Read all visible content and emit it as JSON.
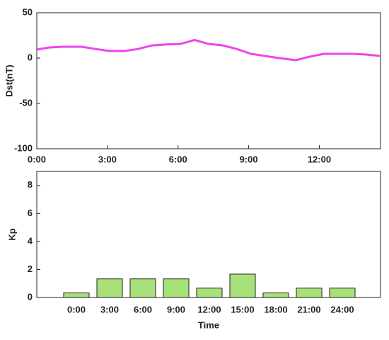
{
  "chart_data": [
    {
      "type": "line",
      "ylabel": "Dst(nT)",
      "x": [
        0,
        0.54,
        1.14,
        1.9,
        2.5,
        3.1,
        3.7,
        4.3,
        4.9,
        5.5,
        6.1,
        6.7,
        7.3,
        7.9,
        8.5,
        9.1,
        9.7,
        10.3,
        11.0,
        11.6,
        12.2,
        12.8,
        13.4,
        14.0,
        14.6
      ],
      "series": [
        {
          "color": "#ee44ee",
          "values": [
            9.4,
            11.7,
            12.5,
            12.5,
            10,
            7.8,
            7.8,
            10,
            14,
            15,
            15.6,
            20,
            15.6,
            14,
            10,
            4.7,
            2.3,
            0,
            -2.3,
            1.6,
            4.7,
            4.7,
            4.7,
            3.9,
            2.3
          ]
        }
      ],
      "xlim": [
        0,
        14.6
      ],
      "xticks": [
        {
          "value": 0,
          "label": "0:00"
        },
        {
          "value": 3,
          "label": "3:00"
        },
        {
          "value": 6,
          "label": "6:00"
        },
        {
          "value": 9,
          "label": "9:00"
        },
        {
          "value": 12,
          "label": "12:00"
        }
      ],
      "ylim": [
        -100,
        50
      ],
      "yticks": [
        -100,
        -50,
        0,
        50
      ]
    },
    {
      "type": "bar",
      "ylabel": "Kp",
      "xlabel": "Time",
      "categories": [
        "0:00",
        "3:00",
        "6:00",
        "9:00",
        "12:00",
        "15:00",
        "18:00",
        "21:00",
        "24:00"
      ],
      "values": [
        0.33,
        1.33,
        1.33,
        1.33,
        0.67,
        1.67,
        0.33,
        0.67,
        0.67
      ],
      "color": "#a8e07a",
      "ylim": [
        0,
        9
      ],
      "yticks": [
        0,
        2,
        4,
        6,
        8
      ]
    }
  ]
}
